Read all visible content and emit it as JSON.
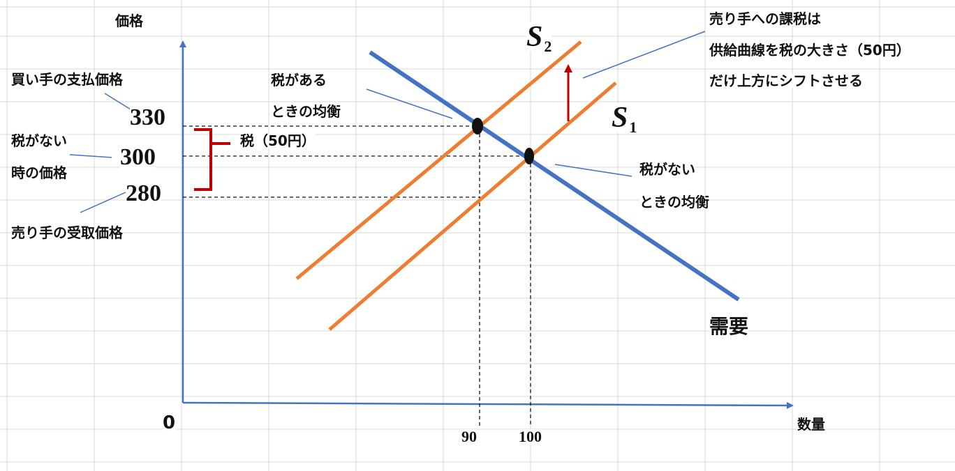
{
  "axes": {
    "y_label": "価格",
    "x_label": "数量",
    "origin": "0"
  },
  "price_ticks": {
    "p330": "330",
    "p300": "300",
    "p280": "280"
  },
  "quantity_ticks": {
    "q90": "90",
    "q100": "100"
  },
  "curves": {
    "s2_letter": "S",
    "s2_sub": "2",
    "s1_letter": "S",
    "s1_sub": "1",
    "demand": "需要"
  },
  "annotations": {
    "buyer_price": "買い手の支払価格",
    "no_tax_price_line1": "税がない",
    "no_tax_price_line2": "時の価格",
    "seller_price": "売り手の受取価格",
    "tax_bracket": "税（50円）",
    "eq_with_tax_line1": "税がある",
    "eq_with_tax_line2": "ときの均衡",
    "eq_no_tax_line1": "税がない",
    "eq_no_tax_line2": "ときの均衡",
    "shift_line1": "売り手への課税は",
    "shift_line2": "供給曲線を税の大きさ（50円）",
    "shift_line3": "だけ上方にシフトさせる"
  },
  "colors": {
    "axis": "#4472c4",
    "demand": "#4472c4",
    "supply": "#ed7d31",
    "tax": "#c00000",
    "grid": "#d9d9d9"
  },
  "chart_data": {
    "type": "line",
    "xlabel": "数量",
    "ylabel": "価格",
    "series": [
      {
        "name": "需要",
        "x": [
          90,
          100
        ],
        "y": [
          330,
          300
        ]
      },
      {
        "name": "S1",
        "x": [
          100
        ],
        "y": [
          300
        ]
      },
      {
        "name": "S2",
        "x": [
          90
        ],
        "y": [
          330
        ]
      }
    ],
    "equilibria": [
      {
        "label": "税がないときの均衡",
        "quantity": 100,
        "price": 300
      },
      {
        "label": "税があるときの均衡",
        "quantity": 90,
        "price": 330
      }
    ],
    "buyer_price": 330,
    "seller_price": 280,
    "tax": 50
  }
}
